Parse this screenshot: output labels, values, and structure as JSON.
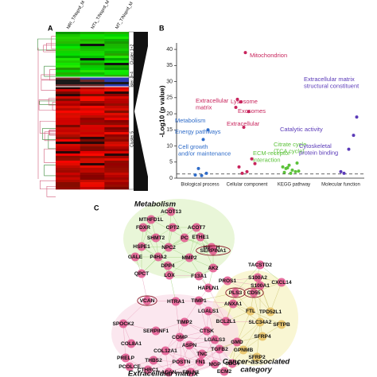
{
  "panel_labels": [
    "A",
    "B",
    "C"
  ],
  "heatmap": {
    "columns": [
      "NRI_T/Nsprd_M",
      "NTx_T/Nsprd_M",
      "MT_T/Nsprd_M"
    ],
    "clusters": [
      "Cluster 1+2",
      "Cluster 3+4",
      "Cluster 5"
    ]
  },
  "chart_data": {
    "type": "scatter",
    "ylabel": "-Log10 (p value)",
    "categories": [
      "Biological process",
      "Cellular component",
      "KEGG pathway",
      "Molecular function"
    ],
    "ylim": [
      0,
      42
    ],
    "yticks": [
      0,
      5,
      10,
      15,
      20,
      25,
      30,
      35,
      40
    ],
    "threshold": 1.3,
    "series": [
      {
        "color": "#2f6cc9",
        "values": [
          15,
          12,
          3,
          1.5,
          1,
          0.8
        ],
        "labels": [
          [
            "Metabolism"
          ],
          [
            "Energy pathways"
          ],
          [
            "Cell growth",
            "and/or maintenance"
          ],
          null,
          null,
          null
        ]
      },
      {
        "color": "#c8245c",
        "values": [
          39,
          22,
          23.7,
          20.7,
          15.8,
          6,
          3.5,
          2,
          4.5,
          1.5,
          24.5
        ],
        "labels": [
          [
            "Mitochondrion"
          ],
          [
            "Extracellular",
            "matrix"
          ],
          [
            "Lysosome"
          ],
          [
            "Exosomes"
          ],
          [
            "Extracellular"
          ],
          null,
          null,
          null,
          null,
          null,
          null
        ]
      },
      {
        "color": "#5cc23a",
        "values": [
          4.7,
          3.5,
          4,
          3,
          2.5,
          2,
          1.8,
          2.2,
          3.2,
          1.5
        ],
        "labels": [
          [
            "Citrate cycle",
            "(TCA cycle)"
          ],
          [
            "ECM-receptor",
            "interaction"
          ],
          null,
          null,
          null,
          null,
          null,
          null,
          null,
          null
        ]
      },
      {
        "color": "#5a3ab8",
        "values": [
          19,
          13.3,
          9,
          2,
          1.5
        ],
        "labels": [
          [
            "Extracellular matrix",
            "structural constituent"
          ],
          [
            "Catalytic activity"
          ],
          [
            "Cytoskeletal",
            "protein binding"
          ],
          null,
          null
        ]
      }
    ]
  },
  "network": {
    "groups": [
      [
        "Metabolism"
      ],
      [
        "Cancer-associated",
        "category"
      ],
      [
        "Extracellular matrix"
      ]
    ],
    "nodes": [
      "ACOT13",
      "MTHFD1L",
      "FDXR",
      "CPT2",
      "ACOT7",
      "SHMT2",
      "PC",
      "ETHE1",
      "HSPE1",
      "NPC2",
      "HIBCH",
      "GALE",
      "P4HA2",
      "MMP2",
      "SERPINA1",
      "DPP4",
      "AK2",
      "QPCT",
      "LOX",
      "F13A1",
      "PROS1",
      "TACSTD2",
      "HAPLN1",
      "PLS3",
      "CD55",
      "S100A2",
      "S100A1",
      "CXCL14",
      "VCAN",
      "HTRA1",
      "TIMP1",
      "ANXA1",
      "FTL",
      "TPD52L1",
      "LGALS1",
      "SPOCK2",
      "TIMP2",
      "BCL2L1",
      "SLC34A2",
      "SFTPB",
      "SERPINF1",
      "CTSK",
      "COMP",
      "ASPN",
      "LGALS3",
      "GMD",
      "SFRP4",
      "COL8A1",
      "COL12A1",
      "TGFB2",
      "GPNMB",
      "TNC",
      "SFRP2",
      "PRELP",
      "THBS2",
      "POSTN",
      "FN1",
      "MGP",
      "SDC4",
      "PCOLCE",
      "CTHRC1",
      "ACAN",
      "ECM2",
      "FBLN1"
    ]
  }
}
